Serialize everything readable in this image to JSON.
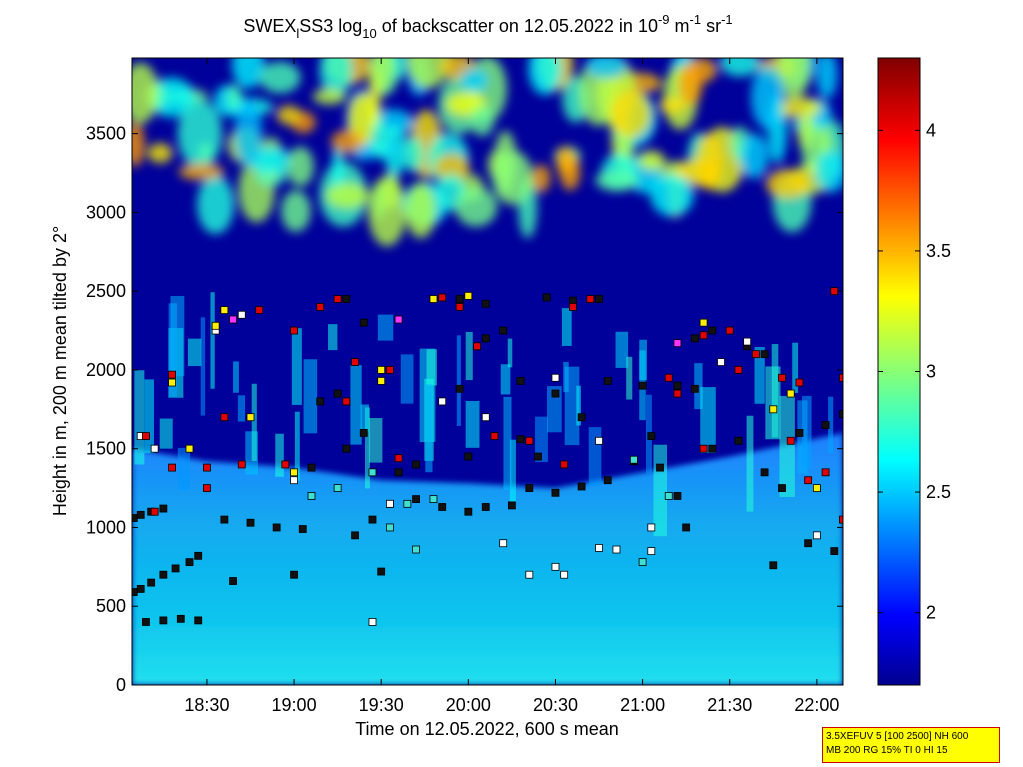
{
  "chart_data": {
    "type": "heatmap",
    "title": {
      "prefix": "SWEX",
      "sub": "l",
      "mid": "SS3 log",
      "sub2": "10",
      "text": " of backscatter on 12.05.2022 in 10",
      "sup1": "-9",
      "unit1": " m",
      "sup2": "-1",
      "unit2": " sr",
      "sup3": "-1"
    },
    "xlabel": "Time on 12.05.2022, 600 s mean",
    "ylabel": "Height in m, 200 m mean tilted by 2°",
    "x_range_hours": [
      18.07,
      22.15
    ],
    "x_ticks": [
      {
        "value": 18.5,
        "label": "18:30"
      },
      {
        "value": 19.0,
        "label": "19:00"
      },
      {
        "value": 19.5,
        "label": "19:30"
      },
      {
        "value": 20.0,
        "label": "20:00"
      },
      {
        "value": 20.5,
        "label": "20:30"
      },
      {
        "value": 21.0,
        "label": "21:00"
      },
      {
        "value": 21.5,
        "label": "21:30"
      },
      {
        "value": 22.0,
        "label": "22:00"
      }
    ],
    "y_range": [
      0,
      3980
    ],
    "y_ticks": [
      0,
      500,
      1000,
      1500,
      2000,
      2500,
      3000,
      3500
    ],
    "colorbar": {
      "range": [
        1.7,
        4.3
      ],
      "ticks": [
        2,
        2.5,
        3,
        3.5,
        4
      ],
      "colormap": "jet"
    },
    "layers": [
      {
        "name": "aerosol-layer",
        "level": 2.45,
        "top_points": [
          [
            18.07,
            1500
          ],
          [
            18.5,
            1420
          ],
          [
            19.0,
            1380
          ],
          [
            19.5,
            1300
          ],
          [
            20.0,
            1280
          ],
          [
            20.5,
            1250
          ],
          [
            21.0,
            1350
          ],
          [
            21.5,
            1450
          ],
          [
            22.15,
            1600
          ]
        ]
      },
      {
        "name": "cloud-band",
        "level": 3.3,
        "range": [
          3000,
          3980
        ]
      }
    ],
    "markers": {
      "black": [
        [
          18.08,
          1060
        ],
        [
          18.12,
          1080
        ],
        [
          18.18,
          1100
        ],
        [
          18.25,
          1120
        ],
        [
          18.08,
          590
        ],
        [
          18.12,
          610
        ],
        [
          18.18,
          650
        ],
        [
          18.25,
          700
        ],
        [
          18.32,
          740
        ],
        [
          18.4,
          780
        ],
        [
          18.45,
          820
        ],
        [
          18.15,
          400
        ],
        [
          18.25,
          410
        ],
        [
          18.35,
          420
        ],
        [
          18.45,
          410
        ],
        [
          18.6,
          1050
        ],
        [
          18.75,
          1030
        ],
        [
          18.9,
          1000
        ],
        [
          19.05,
          990
        ],
        [
          18.65,
          660
        ],
        [
          19.0,
          700
        ],
        [
          19.35,
          950
        ],
        [
          19.45,
          1050
        ],
        [
          19.55,
          1150
        ],
        [
          19.7,
          1180
        ],
        [
          19.85,
          1130
        ],
        [
          20.0,
          1100
        ],
        [
          20.1,
          1130
        ],
        [
          20.25,
          1140
        ],
        [
          20.35,
          1250
        ],
        [
          20.5,
          1220
        ],
        [
          20.65,
          1260
        ],
        [
          20.8,
          1300
        ],
        [
          20.95,
          1420
        ],
        [
          21.1,
          1380
        ],
        [
          21.2,
          1200
        ],
        [
          21.25,
          1000
        ],
        [
          21.4,
          1500
        ],
        [
          21.55,
          1550
        ],
        [
          21.7,
          1350
        ],
        [
          21.8,
          1250
        ],
        [
          21.95,
          900
        ],
        [
          22.1,
          850
        ],
        [
          19.5,
          720
        ],
        [
          21.75,
          760
        ],
        [
          21.2,
          1900
        ],
        [
          21.3,
          1880
        ],
        [
          20.3,
          1930
        ],
        [
          20.5,
          1850
        ],
        [
          20.65,
          1700
        ],
        [
          20.8,
          1930
        ],
        [
          21.0,
          1900
        ],
        [
          19.15,
          1800
        ],
        [
          19.25,
          1850
        ],
        [
          19.6,
          1350
        ],
        [
          19.7,
          1400
        ],
        [
          19.1,
          1380
        ],
        [
          19.3,
          1500
        ],
        [
          19.4,
          1600
        ],
        [
          20.0,
          1450
        ],
        [
          20.3,
          1560
        ],
        [
          20.4,
          1450
        ],
        [
          21.3,
          2200
        ],
        [
          21.4,
          2250
        ],
        [
          21.6,
          2150
        ],
        [
          21.7,
          2100
        ],
        [
          21.9,
          1600
        ],
        [
          22.05,
          1650
        ],
        [
          22.15,
          1720
        ],
        [
          20.45,
          2460
        ],
        [
          20.6,
          2440
        ],
        [
          20.75,
          2450
        ],
        [
          20.1,
          2200
        ],
        [
          20.2,
          2250
        ],
        [
          19.3,
          2450
        ],
        [
          19.4,
          2300
        ],
        [
          19.95,
          1880
        ],
        [
          19.95,
          2450
        ],
        [
          20.1,
          2420
        ],
        [
          21.05,
          1580
        ]
      ],
      "white": [
        [
          18.12,
          1580
        ],
        [
          18.2,
          1500
        ],
        [
          18.55,
          2250
        ],
        [
          18.7,
          2350
        ],
        [
          19.0,
          1300
        ],
        [
          19.55,
          1150
        ],
        [
          19.85,
          1800
        ],
        [
          20.1,
          1700
        ],
        [
          20.5,
          1950
        ],
        [
          20.75,
          1550
        ],
        [
          21.45,
          2050
        ],
        [
          21.6,
          2180
        ],
        [
          22.0,
          950
        ],
        [
          19.45,
          400
        ],
        [
          20.2,
          900
        ],
        [
          20.5,
          750
        ],
        [
          20.35,
          700
        ],
        [
          20.55,
          700
        ],
        [
          21.05,
          850
        ],
        [
          20.85,
          860
        ],
        [
          20.75,
          870
        ],
        [
          21.05,
          1000
        ]
      ],
      "cyan": [
        [
          19.1,
          1200
        ],
        [
          19.25,
          1250
        ],
        [
          19.45,
          1350
        ],
        [
          19.55,
          1000
        ],
        [
          19.65,
          1150
        ],
        [
          19.8,
          1180
        ],
        [
          20.95,
          1430
        ],
        [
          21.15,
          1200
        ],
        [
          19.7,
          860
        ],
        [
          21.0,
          780
        ]
      ],
      "red": [
        [
          18.15,
          1580
        ],
        [
          18.2,
          1100
        ],
        [
          18.3,
          1380
        ],
        [
          18.5,
          1250
        ],
        [
          18.5,
          1380
        ],
        [
          18.6,
          1700
        ],
        [
          18.7,
          1400
        ],
        [
          18.8,
          2380
        ],
        [
          18.95,
          1400
        ],
        [
          19.0,
          2250
        ],
        [
          19.15,
          2400
        ],
        [
          19.25,
          2450
        ],
        [
          19.3,
          1800
        ],
        [
          19.35,
          2050
        ],
        [
          19.55,
          2000
        ],
        [
          19.6,
          1440
        ],
        [
          19.85,
          2460
        ],
        [
          19.95,
          2400
        ],
        [
          20.05,
          2150
        ],
        [
          20.15,
          1580
        ],
        [
          20.35,
          1550
        ],
        [
          20.55,
          1400
        ],
        [
          20.6,
          2400
        ],
        [
          20.7,
          2450
        ],
        [
          21.15,
          1950
        ],
        [
          21.2,
          1850
        ],
        [
          21.35,
          1500
        ],
        [
          21.5,
          2250
        ],
        [
          21.55,
          2000
        ],
        [
          21.65,
          2100
        ],
        [
          21.8,
          1950
        ],
        [
          21.85,
          1550
        ],
        [
          21.95,
          1300
        ],
        [
          22.05,
          1350
        ],
        [
          22.1,
          2500
        ],
        [
          22.15,
          1950
        ],
        [
          22.15,
          1050
        ],
        [
          21.9,
          1920
        ],
        [
          21.35,
          2220
        ],
        [
          18.3,
          1970
        ]
      ],
      "yellow": [
        [
          18.3,
          1920
        ],
        [
          18.4,
          1500
        ],
        [
          18.6,
          2380
        ],
        [
          18.75,
          1700
        ],
        [
          19.0,
          1350
        ],
        [
          19.5,
          1930
        ],
        [
          19.5,
          2000
        ],
        [
          21.35,
          2300
        ],
        [
          21.75,
          1750
        ],
        [
          21.85,
          1850
        ],
        [
          22.0,
          1250
        ],
        [
          20.0,
          2470
        ],
        [
          19.8,
          2450
        ],
        [
          18.55,
          2280
        ]
      ],
      "magenta": [
        [
          18.65,
          2320
        ],
        [
          19.6,
          2320
        ],
        [
          21.2,
          2170
        ]
      ]
    }
  },
  "info": {
    "line1": "3.5XEFUV 5 [100 2500] NH 600",
    "line2": "MB 200 RG 15% TI 0 HI 15"
  }
}
